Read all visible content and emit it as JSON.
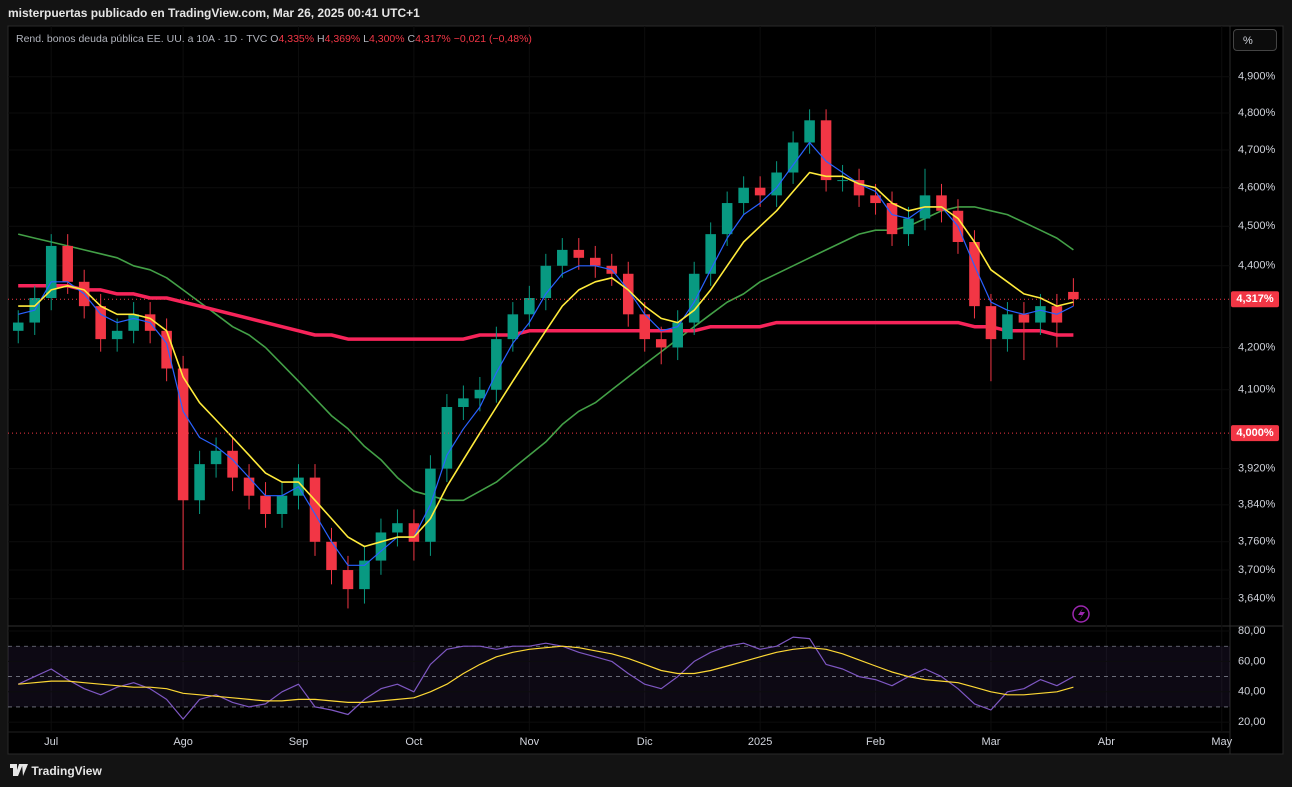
{
  "header": {
    "publisher": "misterpuertas publicado en TradingView.com, Mar 26, 2025 00:41 UTC+1"
  },
  "toolbar": {
    "unit_button": "%"
  },
  "footer": {
    "brand": "TradingView"
  },
  "chart_data": [
    {
      "type": "candlestick",
      "title": "Rend. bonos deuda pública EE. UU. a 10A · 1D · TVC",
      "ohlc_legend": [
        {
          "key": "O",
          "value": "4,335%"
        },
        {
          "key": "H",
          "value": "4,369%"
        },
        {
          "key": "L",
          "value": "4,300%"
        },
        {
          "key": "C",
          "value": "4,317%"
        }
      ],
      "change": "−0,021 (−0,48%)",
      "categories": [
        null,
        null,
        "Jul",
        null,
        null,
        null,
        null,
        null,
        null,
        null,
        "Ago",
        null,
        null,
        null,
        null,
        null,
        null,
        "Sep",
        null,
        null,
        null,
        null,
        null,
        null,
        "Oct",
        null,
        null,
        null,
        null,
        null,
        null,
        "Nov",
        null,
        null,
        null,
        null,
        null,
        null,
        "Dic",
        null,
        null,
        null,
        null,
        null,
        null,
        "2025",
        null,
        null,
        null,
        null,
        null,
        null,
        "Feb",
        null,
        null,
        null,
        null,
        null,
        null,
        "Mar",
        null,
        null,
        null,
        null,
        null,
        null,
        "Abr",
        null,
        null,
        null,
        null,
        null,
        null,
        "May"
      ],
      "open": [
        4.24,
        4.26,
        4.32,
        4.45,
        4.36,
        4.3,
        4.22,
        4.24,
        4.28,
        4.24,
        4.15,
        3.85,
        3.93,
        3.96,
        3.9,
        3.86,
        3.82,
        3.86,
        3.9,
        3.76,
        3.7,
        3.66,
        3.72,
        3.78,
        3.8,
        3.76,
        3.92,
        4.06,
        4.08,
        4.1,
        4.22,
        4.28,
        4.32,
        4.4,
        4.44,
        4.42,
        4.4,
        4.38,
        4.28,
        4.22,
        4.2,
        4.26,
        4.38,
        4.48,
        4.56,
        4.6,
        4.58,
        4.64,
        4.72,
        4.78,
        4.62,
        4.62,
        4.58,
        4.56,
        4.48,
        4.52,
        4.58,
        4.54,
        4.46,
        4.3,
        4.22,
        4.28,
        4.26,
        4.3,
        4.335,
        null,
        null,
        null,
        null,
        null,
        null,
        null,
        null,
        null
      ],
      "high": [
        4.29,
        4.35,
        4.48,
        4.48,
        4.39,
        4.33,
        4.27,
        4.31,
        4.31,
        4.27,
        4.18,
        3.96,
        3.99,
        3.99,
        3.93,
        3.89,
        3.89,
        3.93,
        3.93,
        3.79,
        3.73,
        3.75,
        3.81,
        3.83,
        3.83,
        3.95,
        4.09,
        4.11,
        4.13,
        4.25,
        4.31,
        4.35,
        4.43,
        4.47,
        4.47,
        4.45,
        4.43,
        4.41,
        4.31,
        4.25,
        4.29,
        4.41,
        4.51,
        4.59,
        4.63,
        4.63,
        4.67,
        4.75,
        4.81,
        4.81,
        4.66,
        4.65,
        4.61,
        4.59,
        4.55,
        4.65,
        4.61,
        4.57,
        4.49,
        4.33,
        4.31,
        4.31,
        4.33,
        4.33,
        4.369,
        null,
        null,
        null,
        null,
        null,
        null,
        null,
        null,
        null
      ],
      "low": [
        4.21,
        4.23,
        4.29,
        4.33,
        4.27,
        4.19,
        4.19,
        4.21,
        4.21,
        4.12,
        3.7,
        3.82,
        3.9,
        3.87,
        3.83,
        3.79,
        3.79,
        3.83,
        3.73,
        3.67,
        3.62,
        3.63,
        3.69,
        3.75,
        3.72,
        3.73,
        3.89,
        4.03,
        4.05,
        4.07,
        4.19,
        4.25,
        4.29,
        4.37,
        4.39,
        4.37,
        4.35,
        4.25,
        4.19,
        4.16,
        4.17,
        4.23,
        4.35,
        4.45,
        4.53,
        4.55,
        4.55,
        4.61,
        4.69,
        4.59,
        4.59,
        4.55,
        4.53,
        4.45,
        4.45,
        4.49,
        4.51,
        4.43,
        4.27,
        4.12,
        4.19,
        4.17,
        4.23,
        4.2,
        4.3,
        null,
        null,
        null,
        null,
        null,
        null,
        null,
        null,
        null
      ],
      "close": [
        4.26,
        4.32,
        4.45,
        4.36,
        4.3,
        4.22,
        4.24,
        4.28,
        4.24,
        4.15,
        3.85,
        3.93,
        3.96,
        3.9,
        3.86,
        3.82,
        3.86,
        3.9,
        3.76,
        3.7,
        3.66,
        3.72,
        3.78,
        3.8,
        3.76,
        3.92,
        4.06,
        4.08,
        4.1,
        4.22,
        4.28,
        4.32,
        4.4,
        4.44,
        4.42,
        4.4,
        4.38,
        4.28,
        4.22,
        4.2,
        4.26,
        4.38,
        4.48,
        4.56,
        4.6,
        4.58,
        4.64,
        4.72,
        4.78,
        4.62,
        4.62,
        4.58,
        4.56,
        4.48,
        4.52,
        4.58,
        4.54,
        4.46,
        4.3,
        4.22,
        4.28,
        4.26,
        4.3,
        4.26,
        4.317,
        null,
        null,
        null,
        null,
        null,
        null,
        null,
        null,
        null
      ],
      "up_color": "#089981",
      "down_color": "#f23645",
      "series": [
        {
          "color": "#2962ff",
          "width": 1.2,
          "values": [
            4.28,
            4.29,
            4.36,
            4.36,
            4.33,
            4.28,
            4.26,
            4.27,
            4.26,
            4.21,
            4.05,
            3.99,
            3.97,
            3.94,
            3.9,
            3.86,
            3.86,
            3.88,
            3.82,
            3.76,
            3.71,
            3.71,
            3.74,
            3.77,
            3.77,
            3.84,
            3.95,
            4.01,
            4.06,
            4.14,
            4.21,
            4.26,
            4.33,
            4.38,
            4.4,
            4.4,
            4.39,
            4.34,
            4.28,
            4.24,
            4.25,
            4.31,
            4.39,
            4.47,
            4.53,
            4.56,
            4.6,
            4.66,
            4.72,
            4.67,
            4.64,
            4.61,
            4.59,
            4.53,
            4.52,
            4.55,
            4.55,
            4.5,
            4.4,
            4.31,
            4.29,
            4.28,
            4.29,
            4.28,
            4.3,
            null,
            null,
            null,
            null,
            null,
            null,
            null,
            null,
            null
          ]
        },
        {
          "color": "#ffeb3b",
          "width": 1.6,
          "values": [
            4.3,
            4.3,
            4.34,
            4.35,
            4.34,
            4.3,
            4.28,
            4.28,
            4.27,
            4.24,
            4.13,
            4.07,
            4.03,
            3.99,
            3.95,
            3.91,
            3.89,
            3.89,
            3.85,
            3.81,
            3.77,
            3.75,
            3.76,
            3.77,
            3.77,
            3.81,
            3.88,
            3.94,
            4.0,
            4.06,
            4.12,
            4.18,
            4.24,
            4.3,
            4.34,
            4.36,
            4.37,
            4.34,
            4.3,
            4.27,
            4.26,
            4.29,
            4.34,
            4.4,
            4.46,
            4.5,
            4.54,
            4.59,
            4.64,
            4.63,
            4.63,
            4.61,
            4.6,
            4.56,
            4.54,
            4.55,
            4.55,
            4.52,
            4.46,
            4.39,
            4.36,
            4.33,
            4.32,
            4.3,
            4.31,
            null,
            null,
            null,
            null,
            null,
            null,
            null,
            null,
            null
          ]
        },
        {
          "color": "#43a047",
          "width": 1.6,
          "values": [
            4.48,
            4.47,
            4.46,
            4.45,
            4.44,
            4.43,
            4.42,
            4.4,
            4.39,
            4.37,
            4.34,
            4.31,
            4.28,
            4.25,
            4.23,
            4.2,
            4.16,
            4.12,
            4.08,
            4.04,
            4.01,
            3.97,
            3.94,
            3.9,
            3.87,
            3.86,
            3.85,
            3.85,
            3.87,
            3.89,
            3.92,
            3.95,
            3.98,
            4.02,
            4.05,
            4.07,
            4.1,
            4.13,
            4.16,
            4.19,
            4.22,
            4.25,
            4.28,
            4.31,
            4.33,
            4.36,
            4.38,
            4.4,
            4.42,
            4.44,
            4.46,
            4.48,
            4.49,
            4.49,
            4.5,
            4.52,
            4.54,
            4.55,
            4.55,
            4.54,
            4.53,
            4.51,
            4.49,
            4.47,
            4.44,
            null,
            null,
            null,
            null,
            null,
            null,
            null,
            null,
            null
          ]
        },
        {
          "color": "#f7245a",
          "width": 3.5,
          "values": [
            4.35,
            4.35,
            4.35,
            4.35,
            4.34,
            4.34,
            4.33,
            4.33,
            4.32,
            4.32,
            4.31,
            4.3,
            4.29,
            4.28,
            4.27,
            4.26,
            4.25,
            4.24,
            4.23,
            4.23,
            4.22,
            4.22,
            4.22,
            4.22,
            4.22,
            4.22,
            4.22,
            4.22,
            4.23,
            4.23,
            4.23,
            4.24,
            4.24,
            4.24,
            4.24,
            4.24,
            4.24,
            4.24,
            4.24,
            4.24,
            4.24,
            4.24,
            4.25,
            4.25,
            4.25,
            4.25,
            4.26,
            4.26,
            4.26,
            4.26,
            4.26,
            4.26,
            4.26,
            4.26,
            4.26,
            4.26,
            4.26,
            4.26,
            4.25,
            4.25,
            4.24,
            4.24,
            4.24,
            4.23,
            4.23,
            null,
            null,
            null,
            null,
            null,
            null,
            null,
            null,
            null
          ]
        }
      ],
      "price_lines": [
        {
          "value": 4.0,
          "label": "4,000%",
          "color": "#f23645"
        },
        {
          "value": 4.317,
          "label": "4,317%",
          "color": "#f23645"
        }
      ],
      "log_scale": true,
      "ylim": [
        3.586,
        5.038
      ],
      "yticks": [
        {
          "value": 4.9,
          "label": "4,900%"
        },
        {
          "value": 4.8,
          "label": "4,800%"
        },
        {
          "value": 4.7,
          "label": "4,700%"
        },
        {
          "value": 4.6,
          "label": "4,600%"
        },
        {
          "value": 4.5,
          "label": "4,500%"
        },
        {
          "value": 4.4,
          "label": "4,400%"
        },
        {
          "value": 4.2,
          "label": "4,200%"
        },
        {
          "value": 4.1,
          "label": "4,100%"
        },
        {
          "value": 3.92,
          "label": "3,920%"
        },
        {
          "value": 3.84,
          "label": "3,840%"
        },
        {
          "value": 3.76,
          "label": "3,760%"
        },
        {
          "value": 3.7,
          "label": "3,700%"
        },
        {
          "value": 3.64,
          "label": "3,640%"
        }
      ]
    },
    {
      "type": "line",
      "series": [
        {
          "color": "#7e57c2",
          "width": 1.2,
          "values": [
            45,
            50,
            55,
            48,
            42,
            38,
            43,
            46,
            42,
            35,
            22,
            35,
            38,
            33,
            30,
            32,
            40,
            45,
            30,
            28,
            25,
            35,
            42,
            45,
            40,
            58,
            68,
            70,
            70,
            68,
            70,
            70,
            72,
            70,
            66,
            63,
            60,
            52,
            45,
            42,
            50,
            60,
            66,
            70,
            72,
            68,
            70,
            76,
            75,
            58,
            55,
            50,
            48,
            44,
            50,
            55,
            50,
            42,
            32,
            28,
            40,
            42,
            48,
            44,
            50,
            null,
            null,
            null,
            null,
            null,
            null,
            null,
            null,
            null
          ]
        },
        {
          "color": "#fdd835",
          "width": 1.2,
          "values": [
            45,
            46,
            47,
            47,
            46,
            45,
            44,
            43,
            43,
            42,
            39,
            38,
            37,
            36,
            35,
            34,
            34,
            35,
            35,
            34,
            33,
            33,
            34,
            35,
            36,
            40,
            45,
            52,
            58,
            63,
            66,
            68,
            69,
            70,
            69,
            67,
            65,
            62,
            58,
            54,
            52,
            52,
            54,
            57,
            60,
            63,
            66,
            68,
            69,
            68,
            65,
            61,
            57,
            53,
            50,
            48,
            47,
            46,
            43,
            40,
            38,
            38,
            39,
            40,
            43,
            null,
            null,
            null,
            null,
            null,
            null,
            null,
            null,
            null
          ]
        }
      ],
      "levels": [
        70,
        50,
        30
      ],
      "band_color": "#7e57c2",
      "ylim": [
        13.5,
        82
      ],
      "yticks": [
        {
          "value": 80,
          "label": "80,00"
        },
        {
          "value": 60,
          "label": "60,00"
        },
        {
          "value": 40,
          "label": "40,00"
        },
        {
          "value": 20,
          "label": "20,00"
        }
      ]
    }
  ]
}
